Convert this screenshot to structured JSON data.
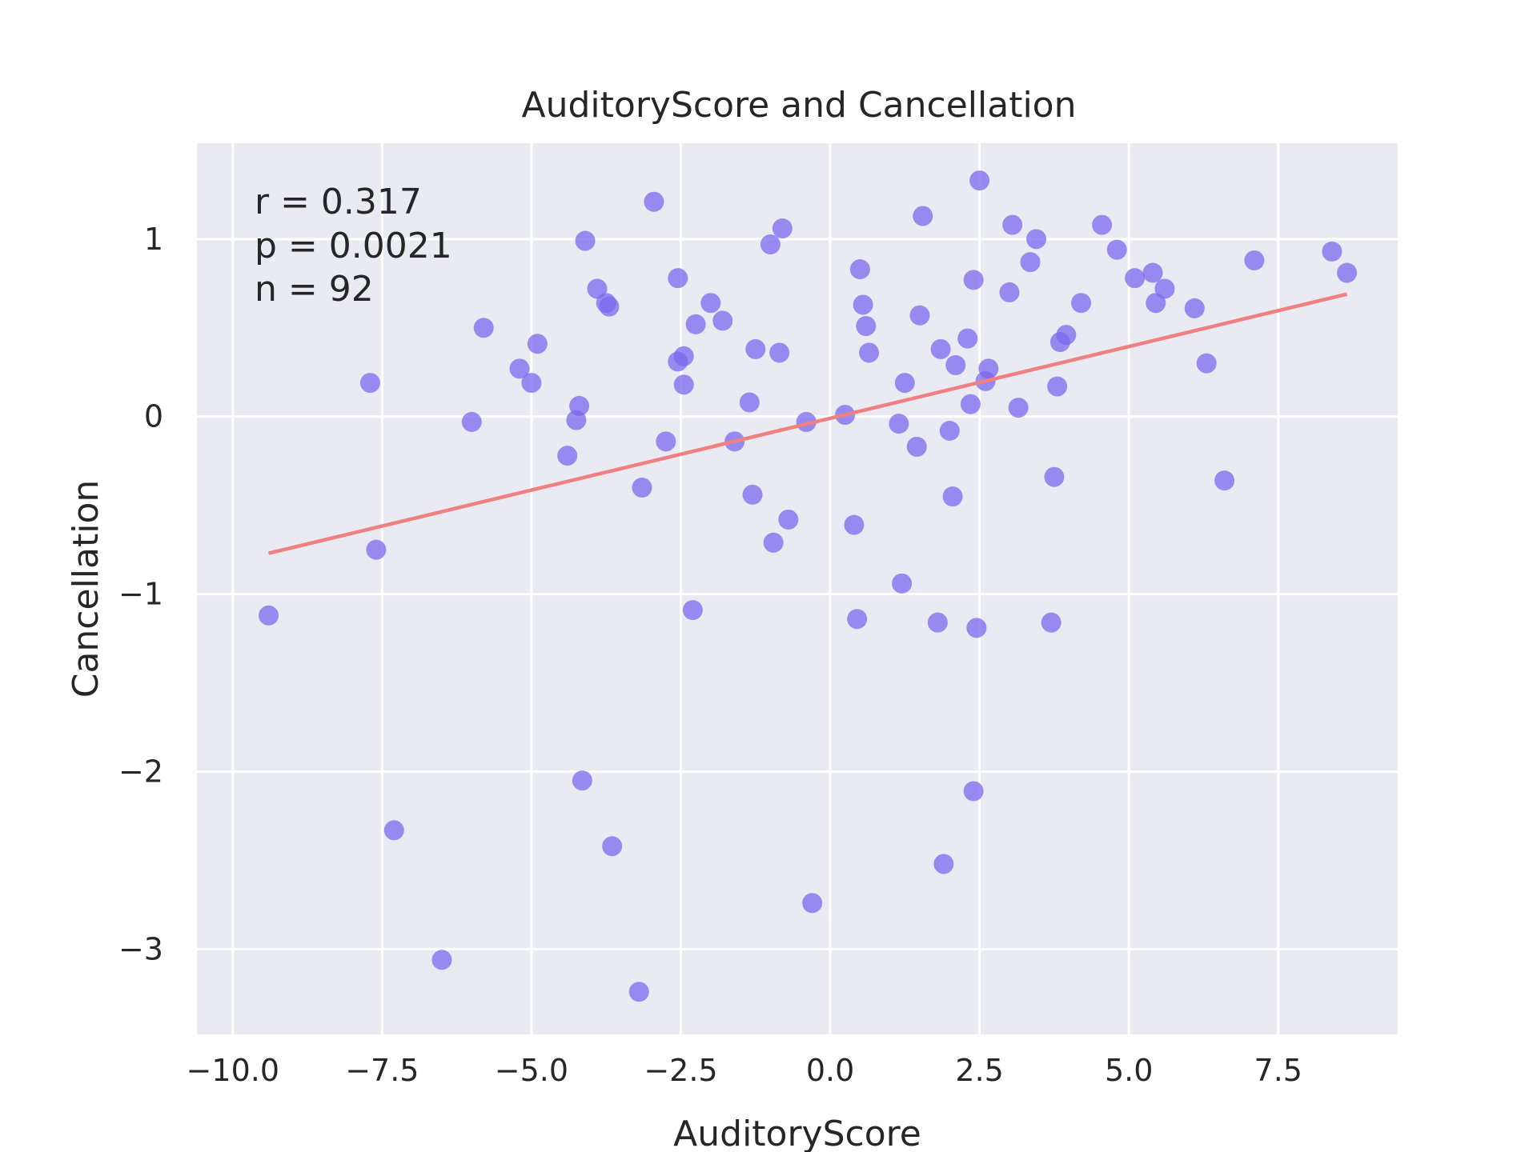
{
  "chart_data": {
    "type": "scatter",
    "title": "AuditoryScore and Cancellation",
    "xlabel": "AuditoryScore",
    "ylabel": "Cancellation",
    "xlim": [
      -10.6,
      9.5
    ],
    "ylim": [
      -3.48,
      1.54
    ],
    "xticks": [
      -10.0,
      -7.5,
      -5.0,
      -2.5,
      0.0,
      2.5,
      5.0,
      7.5
    ],
    "xtick_labels": [
      "−10.0",
      "−7.5",
      "−5.0",
      "−2.5",
      "0.0",
      "2.5",
      "5.0",
      "7.5"
    ],
    "yticks": [
      -3,
      -2,
      -1,
      0,
      1
    ],
    "ytick_labels": [
      "−3",
      "−2",
      "−1",
      "0",
      "1"
    ],
    "grid": true,
    "background_color": "#eaeaf2",
    "point_color": "#7b68ee",
    "line_color": "#f08080",
    "annotations": [
      "r = 0.317",
      "p = 0.0021",
      "n = 92"
    ],
    "points": [
      {
        "x": -9.4,
        "y": -1.12
      },
      {
        "x": -7.7,
        "y": 0.19
      },
      {
        "x": -7.6,
        "y": -0.75
      },
      {
        "x": -7.3,
        "y": -2.33
      },
      {
        "x": -6.5,
        "y": -3.06
      },
      {
        "x": -6.0,
        "y": -0.03
      },
      {
        "x": -5.8,
        "y": 0.5
      },
      {
        "x": -5.2,
        "y": 0.27
      },
      {
        "x": -5.0,
        "y": 0.19
      },
      {
        "x": -4.9,
        "y": 0.41
      },
      {
        "x": -4.4,
        "y": -0.22
      },
      {
        "x": -4.25,
        "y": -0.02
      },
      {
        "x": -4.2,
        "y": 0.06
      },
      {
        "x": -4.15,
        "y": -2.05
      },
      {
        "x": -4.1,
        "y": 0.99
      },
      {
        "x": -3.9,
        "y": 0.72
      },
      {
        "x": -3.75,
        "y": 0.64
      },
      {
        "x": -3.7,
        "y": 0.62
      },
      {
        "x": -3.65,
        "y": -2.42
      },
      {
        "x": -3.2,
        "y": -3.24
      },
      {
        "x": -3.15,
        "y": -0.4
      },
      {
        "x": -2.95,
        "y": 1.21
      },
      {
        "x": -2.75,
        "y": -0.14
      },
      {
        "x": -2.55,
        "y": 0.78
      },
      {
        "x": -2.55,
        "y": 0.31
      },
      {
        "x": -2.45,
        "y": 0.34
      },
      {
        "x": -2.45,
        "y": 0.18
      },
      {
        "x": -2.3,
        "y": -1.09
      },
      {
        "x": -2.25,
        "y": 0.52
      },
      {
        "x": -2.0,
        "y": 0.64
      },
      {
        "x": -1.8,
        "y": 0.54
      },
      {
        "x": -1.6,
        "y": -0.14
      },
      {
        "x": -1.35,
        "y": 0.08
      },
      {
        "x": -1.3,
        "y": -0.44
      },
      {
        "x": -1.25,
        "y": 0.38
      },
      {
        "x": -1.0,
        "y": 0.97
      },
      {
        "x": -0.95,
        "y": -0.71
      },
      {
        "x": -0.85,
        "y": 0.36
      },
      {
        "x": -0.8,
        "y": 1.06
      },
      {
        "x": -0.7,
        "y": -0.58
      },
      {
        "x": -0.4,
        "y": -0.03
      },
      {
        "x": -0.3,
        "y": -2.74
      },
      {
        "x": 0.25,
        "y": 0.01
      },
      {
        "x": 0.4,
        "y": -0.61
      },
      {
        "x": 0.45,
        "y": -1.14
      },
      {
        "x": 0.5,
        "y": 0.83
      },
      {
        "x": 0.55,
        "y": 0.63
      },
      {
        "x": 0.6,
        "y": 0.51
      },
      {
        "x": 0.65,
        "y": 0.36
      },
      {
        "x": 1.15,
        "y": -0.04
      },
      {
        "x": 1.2,
        "y": -0.94
      },
      {
        "x": 1.25,
        "y": 0.19
      },
      {
        "x": 1.45,
        "y": -0.17
      },
      {
        "x": 1.5,
        "y": 0.57
      },
      {
        "x": 1.55,
        "y": 1.13
      },
      {
        "x": 1.8,
        "y": -1.16
      },
      {
        "x": 1.85,
        "y": 0.38
      },
      {
        "x": 1.9,
        "y": -2.52
      },
      {
        "x": 2.0,
        "y": -0.08
      },
      {
        "x": 2.05,
        "y": -0.45
      },
      {
        "x": 2.1,
        "y": 0.29
      },
      {
        "x": 2.3,
        "y": 0.44
      },
      {
        "x": 2.35,
        "y": 0.07
      },
      {
        "x": 2.4,
        "y": 0.77
      },
      {
        "x": 2.4,
        "y": -2.11
      },
      {
        "x": 2.45,
        "y": -1.19
      },
      {
        "x": 2.5,
        "y": 1.33
      },
      {
        "x": 2.6,
        "y": 0.2
      },
      {
        "x": 2.65,
        "y": 0.27
      },
      {
        "x": 3.0,
        "y": 0.7
      },
      {
        "x": 3.05,
        "y": 1.08
      },
      {
        "x": 3.15,
        "y": 0.05
      },
      {
        "x": 3.35,
        "y": 0.87
      },
      {
        "x": 3.45,
        "y": 1.0
      },
      {
        "x": 3.7,
        "y": -1.16
      },
      {
        "x": 3.75,
        "y": -0.34
      },
      {
        "x": 3.8,
        "y": 0.17
      },
      {
        "x": 3.85,
        "y": 0.42
      },
      {
        "x": 3.95,
        "y": 0.46
      },
      {
        "x": 4.2,
        "y": 0.64
      },
      {
        "x": 4.55,
        "y": 1.08
      },
      {
        "x": 4.8,
        "y": 0.94
      },
      {
        "x": 5.1,
        "y": 0.78
      },
      {
        "x": 5.4,
        "y": 0.81
      },
      {
        "x": 5.45,
        "y": 0.64
      },
      {
        "x": 5.6,
        "y": 0.72
      },
      {
        "x": 6.1,
        "y": 0.61
      },
      {
        "x": 6.3,
        "y": 0.3
      },
      {
        "x": 6.6,
        "y": -0.36
      },
      {
        "x": 7.1,
        "y": 0.88
      },
      {
        "x": 8.4,
        "y": 0.93
      },
      {
        "x": 8.65,
        "y": 0.81
      }
    ],
    "fit_line": {
      "x": [
        -9.4,
        8.65
      ],
      "y": [
        -0.77,
        0.69
      ]
    }
  }
}
